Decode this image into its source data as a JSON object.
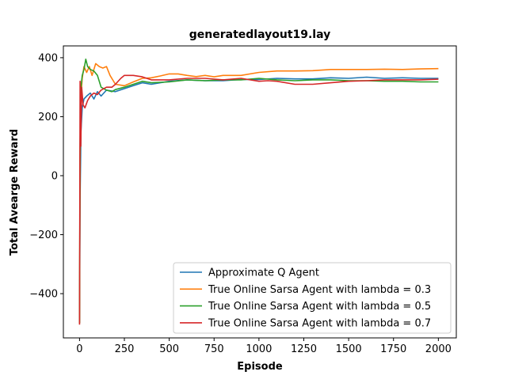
{
  "chart_data": {
    "type": "line",
    "title": "generatedlayout19.lay",
    "xlabel": "Episode",
    "ylabel": "Total Avearge Reward",
    "xlim": [
      -90,
      2100
    ],
    "ylim": [
      -550,
      440
    ],
    "xticks": [
      0,
      250,
      500,
      750,
      1000,
      1250,
      1500,
      1750,
      2000
    ],
    "yticks": [
      -400,
      -200,
      0,
      200,
      400
    ],
    "xtick_labels": [
      "0",
      "250",
      "500",
      "750",
      "1000",
      "1250",
      "1500",
      "1750",
      "2000"
    ],
    "ytick_labels": [
      "−400",
      "−200",
      "0",
      "200",
      "400"
    ],
    "grid": false,
    "legend_position": "lower-right",
    "series": [
      {
        "name": "Approximate Q Agent",
        "color": "#1f77b4",
        "points": [
          [
            0,
            -500
          ],
          [
            3,
            -80
          ],
          [
            8,
            150
          ],
          [
            15,
            230
          ],
          [
            25,
            260
          ],
          [
            40,
            270
          ],
          [
            60,
            280
          ],
          [
            80,
            260
          ],
          [
            100,
            285
          ],
          [
            120,
            270
          ],
          [
            150,
            290
          ],
          [
            200,
            285
          ],
          [
            250,
            295
          ],
          [
            300,
            305
          ],
          [
            350,
            315
          ],
          [
            400,
            310
          ],
          [
            500,
            320
          ],
          [
            600,
            325
          ],
          [
            700,
            322
          ],
          [
            800,
            322
          ],
          [
            900,
            326
          ],
          [
            1000,
            326
          ],
          [
            1100,
            330
          ],
          [
            1200,
            328
          ],
          [
            1300,
            328
          ],
          [
            1400,
            332
          ],
          [
            1500,
            330
          ],
          [
            1600,
            334
          ],
          [
            1700,
            330
          ],
          [
            1800,
            332
          ],
          [
            1900,
            330
          ],
          [
            2000,
            330
          ]
        ]
      },
      {
        "name": "True Online Sarsa Agent with lambda = 0.3",
        "color": "#ff7f0e",
        "points": [
          [
            0,
            -500
          ],
          [
            3,
            50
          ],
          [
            8,
            270
          ],
          [
            15,
            330
          ],
          [
            25,
            370
          ],
          [
            40,
            350
          ],
          [
            55,
            370
          ],
          [
            70,
            340
          ],
          [
            90,
            380
          ],
          [
            110,
            370
          ],
          [
            130,
            365
          ],
          [
            150,
            370
          ],
          [
            170,
            340
          ],
          [
            200,
            310
          ],
          [
            250,
            305
          ],
          [
            300,
            318
          ],
          [
            350,
            330
          ],
          [
            400,
            332
          ],
          [
            450,
            338
          ],
          [
            500,
            345
          ],
          [
            550,
            345
          ],
          [
            600,
            340
          ],
          [
            650,
            336
          ],
          [
            700,
            340
          ],
          [
            750,
            335
          ],
          [
            800,
            340
          ],
          [
            900,
            340
          ],
          [
            1000,
            350
          ],
          [
            1100,
            355
          ],
          [
            1200,
            355
          ],
          [
            1300,
            356
          ],
          [
            1400,
            360
          ],
          [
            1500,
            360
          ],
          [
            1600,
            360
          ],
          [
            1700,
            361
          ],
          [
            1800,
            360
          ],
          [
            1900,
            362
          ],
          [
            2000,
            363
          ]
        ]
      },
      {
        "name": "True Online Sarsa Agent with lambda = 0.5",
        "color": "#2ca02c",
        "points": [
          [
            0,
            -500
          ],
          [
            3,
            100
          ],
          [
            8,
            300
          ],
          [
            15,
            340
          ],
          [
            25,
            360
          ],
          [
            35,
            395
          ],
          [
            45,
            370
          ],
          [
            60,
            360
          ],
          [
            80,
            355
          ],
          [
            100,
            340
          ],
          [
            120,
            300
          ],
          [
            150,
            290
          ],
          [
            180,
            285
          ],
          [
            200,
            292
          ],
          [
            250,
            300
          ],
          [
            300,
            310
          ],
          [
            350,
            320
          ],
          [
            400,
            315
          ],
          [
            500,
            318
          ],
          [
            600,
            325
          ],
          [
            700,
            322
          ],
          [
            800,
            325
          ],
          [
            900,
            325
          ],
          [
            1000,
            330
          ],
          [
            1100,
            325
          ],
          [
            1200,
            322
          ],
          [
            1300,
            325
          ],
          [
            1400,
            325
          ],
          [
            1500,
            322
          ],
          [
            1600,
            322
          ],
          [
            1700,
            320
          ],
          [
            1800,
            320
          ],
          [
            1900,
            318
          ],
          [
            2000,
            318
          ]
        ]
      },
      {
        "name": "True Online Sarsa Agent with lambda = 0.7",
        "color": "#d62728",
        "points": [
          [
            0,
            -505
          ],
          [
            3,
            320
          ],
          [
            7,
            100
          ],
          [
            12,
            300
          ],
          [
            20,
            240
          ],
          [
            30,
            230
          ],
          [
            45,
            255
          ],
          [
            60,
            270
          ],
          [
            80,
            280
          ],
          [
            100,
            275
          ],
          [
            120,
            290
          ],
          [
            150,
            300
          ],
          [
            180,
            300
          ],
          [
            200,
            310
          ],
          [
            230,
            330
          ],
          [
            250,
            340
          ],
          [
            300,
            340
          ],
          [
            350,
            335
          ],
          [
            400,
            325
          ],
          [
            500,
            325
          ],
          [
            600,
            330
          ],
          [
            700,
            330
          ],
          [
            800,
            325
          ],
          [
            900,
            330
          ],
          [
            1000,
            320
          ],
          [
            1050,
            322
          ],
          [
            1100,
            320
          ],
          [
            1200,
            310
          ],
          [
            1300,
            310
          ],
          [
            1400,
            315
          ],
          [
            1500,
            320
          ],
          [
            1600,
            322
          ],
          [
            1700,
            325
          ],
          [
            1800,
            325
          ],
          [
            1900,
            325
          ],
          [
            2000,
            327
          ]
        ]
      }
    ]
  }
}
